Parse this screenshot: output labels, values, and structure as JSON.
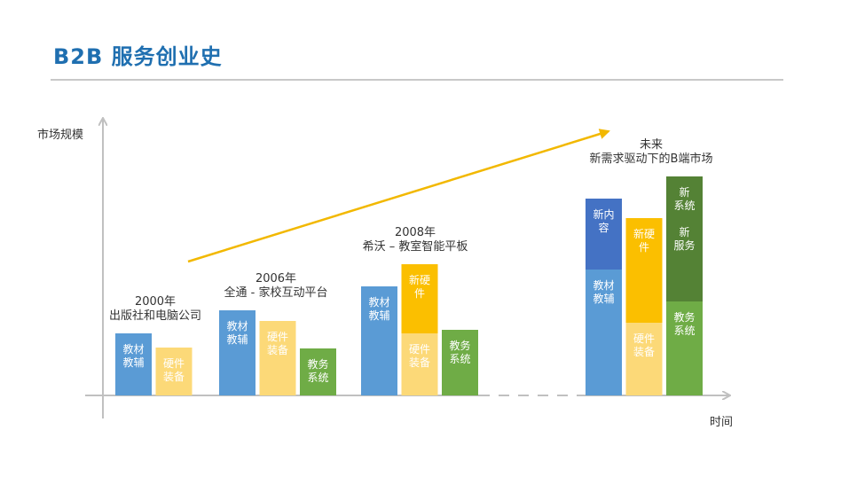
{
  "header": {
    "title": "B2B 服务创业史"
  },
  "colors": {
    "blue": "#5a9bd5",
    "dark_blue": "#4472c4",
    "yellow": "#fcd978",
    "orange": "#fbbf00",
    "green": "#6fac46",
    "dark_green": "#548235",
    "axis": "#c0c0c0",
    "arrow": "#f2b800"
  },
  "chart_data": {
    "type": "bar",
    "title": "",
    "xlabel": "时间",
    "ylabel": "市场规模",
    "eras": [
      {
        "label_lines": [
          "2000年",
          "出版社和电脑公司"
        ],
        "bars": [
          {
            "color": "blue",
            "segments": [
              {
                "value": 70,
                "color": "blue",
                "text": [
                  "教材",
                  "教辅"
                ]
              }
            ]
          },
          {
            "color": "yellow",
            "segments": [
              {
                "value": 54,
                "color": "yellow",
                "text": [
                  "硬件",
                  "装备"
                ]
              }
            ]
          }
        ]
      },
      {
        "label_lines": [
          "2006年",
          "全通 - 家校互动平台"
        ],
        "bars": [
          {
            "segments": [
              {
                "value": 96,
                "color": "blue",
                "text": [
                  "教材",
                  "教辅"
                ]
              }
            ]
          },
          {
            "segments": [
              {
                "value": 84,
                "color": "yellow",
                "text": [
                  "硬件",
                  "装备"
                ]
              }
            ]
          },
          {
            "segments": [
              {
                "value": 53,
                "color": "green",
                "text": [
                  "教务",
                  "系统"
                ]
              }
            ]
          }
        ]
      },
      {
        "label_lines": [
          "2008年",
          "希沃 – 教室智能平板"
        ],
        "bars": [
          {
            "segments": [
              {
                "value": 123,
                "color": "blue",
                "text": [
                  "教材",
                  "教辅"
                ]
              }
            ]
          },
          {
            "segments": [
              {
                "value": 70,
                "color": "yellow",
                "text": [
                  "硬件",
                  "装备"
                ]
              },
              {
                "value": 78,
                "color": "orange",
                "text": [
                  "新硬",
                  "件"
                ]
              }
            ]
          },
          {
            "segments": [
              {
                "value": 74,
                "color": "green",
                "text": [
                  "教务",
                  "系统"
                ]
              }
            ]
          }
        ]
      },
      {
        "label_lines": [
          "未来",
          "新需求驱动下的B端市场"
        ],
        "bars": [
          {
            "segments": [
              {
                "value": 142,
                "color": "blue",
                "text": [
                  "教材",
                  "教辅"
                ]
              },
              {
                "value": 80,
                "color": "dark_blue",
                "text": [
                  "新内",
                  "容"
                ]
              }
            ]
          },
          {
            "segments": [
              {
                "value": 82,
                "color": "yellow",
                "text": [
                  "硬件",
                  "装备"
                ]
              },
              {
                "value": 118,
                "color": "orange",
                "text": [
                  "新硬",
                  "件"
                ]
              }
            ]
          },
          {
            "segments": [
              {
                "value": 106,
                "color": "green",
                "text": [
                  "教务",
                  "系统"
                ]
              },
              {
                "value": 141,
                "color": "dark_green",
                "text": [
                  "新",
                  "系统",
                  "",
                  "新",
                  "服务"
                ]
              }
            ]
          }
        ]
      }
    ]
  }
}
